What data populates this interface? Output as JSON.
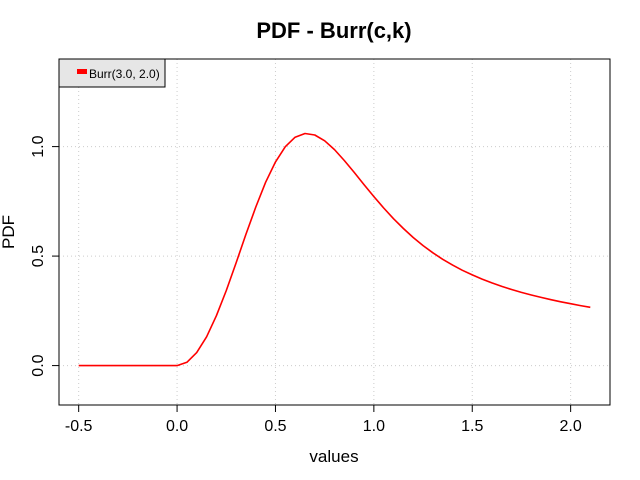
{
  "chart_data": {
    "type": "line",
    "title": "PDF - Burr(c,k)",
    "xlabel": "values",
    "ylabel": "PDF",
    "xlim": [
      -0.6,
      2.2
    ],
    "ylim": [
      -0.18,
      1.4
    ],
    "xticks": [
      -0.5,
      0.0,
      0.5,
      1.0,
      1.5,
      2.0
    ],
    "xtick_labels": [
      "-0.5",
      "0.0",
      "0.5",
      "1.0",
      "1.5",
      "2.0"
    ],
    "yticks": [
      0.0,
      0.5,
      1.0
    ],
    "ytick_labels": [
      "0.0",
      "0.5",
      "1.0"
    ],
    "grid": true,
    "legend_position": "top-left",
    "series": [
      {
        "name": "Burr(3.0, 2.0)",
        "color": "#ff0000",
        "x": [
          -0.5,
          -0.25,
          0.0,
          0.05,
          0.1,
          0.15,
          0.2,
          0.25,
          0.3,
          0.35,
          0.4,
          0.45,
          0.5,
          0.55,
          0.6,
          0.65,
          0.7,
          0.75,
          0.8,
          0.85,
          0.9,
          0.95,
          1.0,
          1.05,
          1.1,
          1.15,
          1.2,
          1.25,
          1.3,
          1.35,
          1.4,
          1.45,
          1.5,
          1.55,
          1.6,
          1.65,
          1.7,
          1.75,
          1.8,
          1.85,
          1.9,
          1.95,
          2.0,
          2.05,
          2.1
        ],
        "y": [
          0.0,
          0.0,
          0.0,
          0.015,
          0.0594,
          0.1316,
          0.2279,
          0.3427,
          0.469,
          0.5989,
          0.7241,
          0.8368,
          0.9302,
          0.9996,
          1.0427,
          1.0596,
          1.0528,
          1.0266,
          0.9861,
          0.9364,
          0.882,
          0.8263,
          0.7716,
          0.7194,
          0.6707,
          0.6258,
          0.585,
          0.5481,
          0.515,
          0.4854,
          0.4589,
          0.4352,
          0.4139,
          0.3947,
          0.3774,
          0.3617,
          0.3474,
          0.3343,
          0.3223,
          0.3112,
          0.3009,
          0.2913,
          0.2824,
          0.274,
          0.2661
        ]
      }
    ]
  }
}
